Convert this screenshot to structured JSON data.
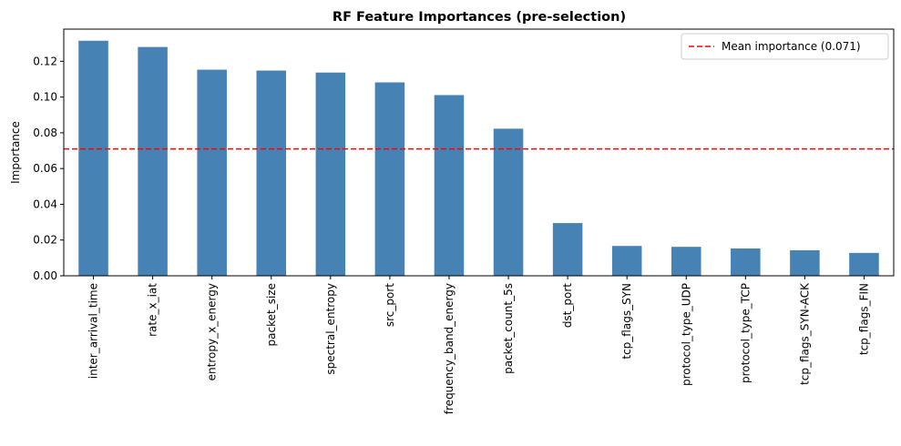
{
  "chart_data": {
    "type": "bar",
    "title": "RF Feature Importances (pre-selection)",
    "xlabel": "",
    "ylabel": "Importance",
    "categories": [
      "inter_arrival_time",
      "rate_x_iat",
      "entropy_x_energy",
      "packet_size",
      "spectral_entropy",
      "src_port",
      "frequency_band_energy",
      "packet_count_5s",
      "dst_port",
      "tcp_flags_SYN",
      "protocol_type_UDP",
      "protocol_type_TCP",
      "tcp_flags_SYN-ACK",
      "tcp_flags_FIN"
    ],
    "values": [
      0.1315,
      0.128,
      0.1153,
      0.1148,
      0.1137,
      0.1082,
      0.1011,
      0.0823,
      0.0295,
      0.0167,
      0.0162,
      0.0153,
      0.0143,
      0.0128
    ],
    "ylim": [
      0,
      0.138
    ],
    "yticks": [
      0.0,
      0.02,
      0.04,
      0.06,
      0.08,
      0.1,
      0.12
    ],
    "ytick_labels": [
      "0.00",
      "0.02",
      "0.04",
      "0.06",
      "0.08",
      "0.10",
      "0.12"
    ],
    "bar_color": "#4682b4",
    "mean_line": {
      "value": 0.071,
      "color": "#ff0000",
      "style": "dashed"
    },
    "legend": {
      "position": "top-right",
      "entries": [
        "Mean importance (0.071)"
      ]
    },
    "grid": false
  }
}
